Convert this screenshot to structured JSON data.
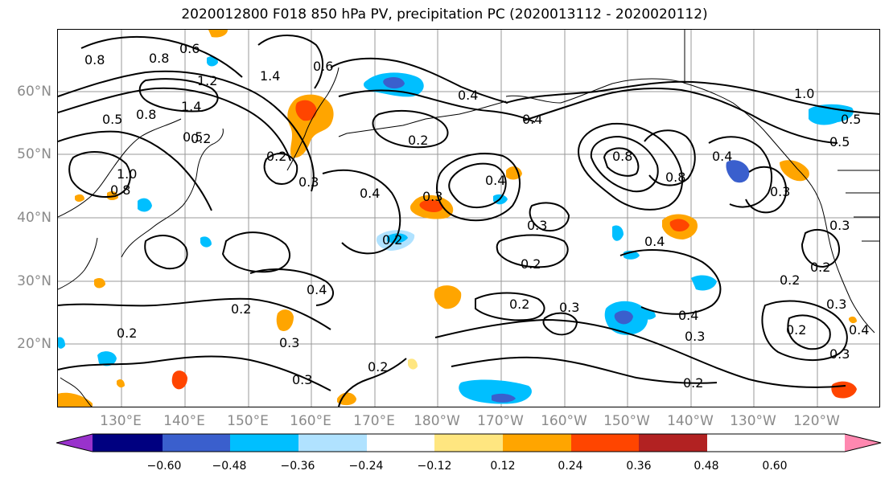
{
  "title": "2020012800 F018 850 hPa PV, precipitation PC (2020013112 - 2020020112)",
  "lat_labels": [
    "60°N",
    "50°N",
    "40°N",
    "30°N",
    "20°N"
  ],
  "lon_labels": [
    "130°E",
    "140°E",
    "150°E",
    "160°E",
    "170°E",
    "180°W",
    "170°W",
    "160°W",
    "150°W",
    "140°W",
    "130°W",
    "120°W"
  ],
  "contour_labels": [
    "0.8",
    "0.8",
    "0.6",
    "1.2",
    "1.4",
    "1.4",
    "0.6",
    "0.5",
    "0.8",
    "0.5",
    "1.0",
    "0.8",
    "0.4",
    "0.2",
    "0.3",
    "0.4",
    "0.2",
    "0.3",
    "0.2",
    "0.3",
    "0.4",
    "0.4",
    "0.2",
    "0.3",
    "0.2",
    "0.3",
    "0.2",
    "0.3",
    "0.2",
    "0.2",
    "0.3",
    "0.2",
    "0.8",
    "0.8",
    "0.4",
    "0.3",
    "0.2",
    "0.3",
    "0.4",
    "0.3",
    "0.2",
    "0.4",
    "0.5",
    "1.0",
    "0.5",
    "0.4",
    "0.3",
    "0.4",
    "0.2",
    "0.2"
  ],
  "colorbar": {
    "ticks": [
      "−0.60",
      "−0.48",
      "−0.36",
      "−0.24",
      "−0.12",
      "0.12",
      "0.24",
      "0.36",
      "0.48",
      "0.60"
    ],
    "colors": [
      "#9932cc",
      "#000080",
      "#3a5fcd",
      "#00bfff",
      "#b0e2ff",
      "#ffffff",
      "#ffe680",
      "#ffa500",
      "#ff4500",
      "#b22222",
      "#ff88b0"
    ]
  },
  "colors": {
    "contour": "#000000",
    "coast": "#000000",
    "grid": "#999999",
    "precip_positive_light": "#ffe680",
    "precip_positive_mid": "#ffa500",
    "precip_positive_strong": "#ff4500",
    "precip_negative_light": "#b0e2ff",
    "precip_negative_mid": "#00bfff",
    "precip_negative_strong": "#3a5fcd"
  }
}
